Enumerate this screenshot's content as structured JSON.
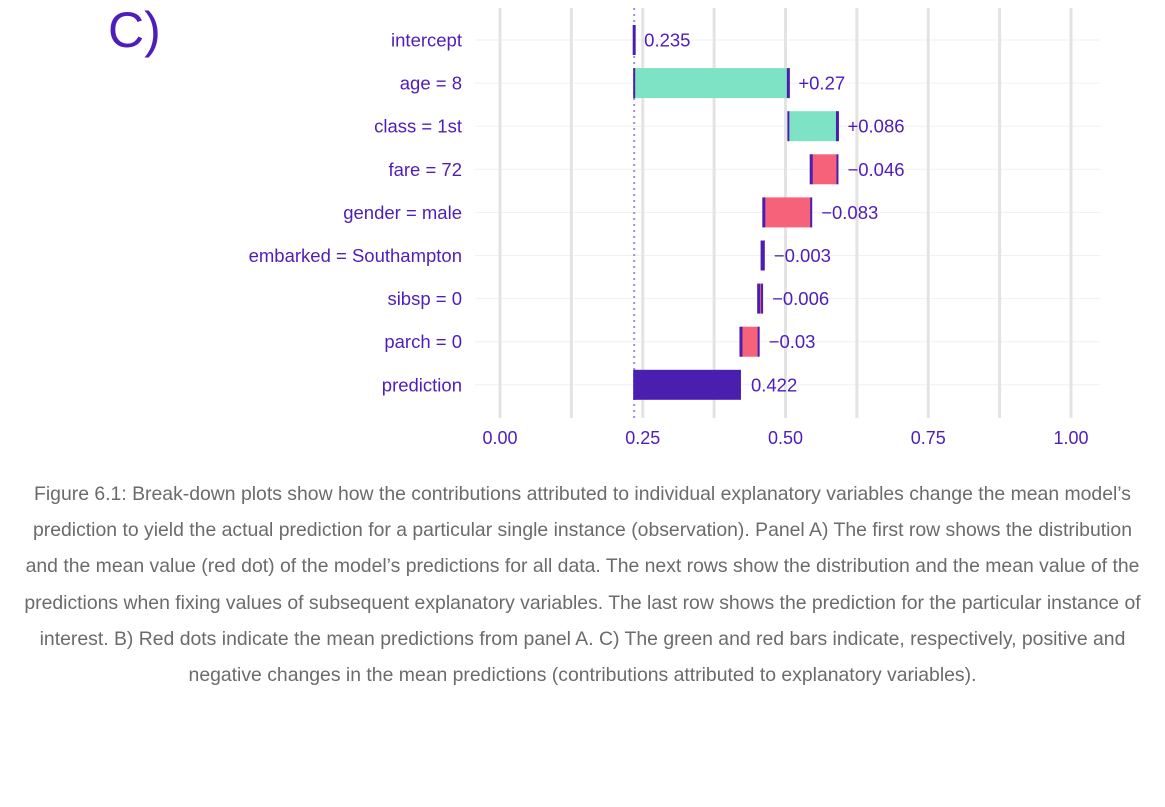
{
  "panel_label": "C)",
  "chart_data": {
    "type": "bar",
    "subtype": "waterfall",
    "title": "",
    "xlabel": "",
    "ylabel": "",
    "xlim": [
      -0.05,
      1.05
    ],
    "x_ticks": [
      0.0,
      0.25,
      0.5,
      0.75,
      1.0
    ],
    "x_tick_labels": [
      "0.00",
      "0.25",
      "0.50",
      "0.75",
      "1.00"
    ],
    "grid": true,
    "legend": "none",
    "baseline": 0.235,
    "rows": [
      {
        "label": "intercept",
        "start": 0.0,
        "end": 0.235,
        "value_label": "0.235",
        "kind": "intercept"
      },
      {
        "label": "age = 8",
        "start": 0.235,
        "end": 0.505,
        "value_label": "+0.27",
        "kind": "positive"
      },
      {
        "label": "class = 1st",
        "start": 0.505,
        "end": 0.591,
        "value_label": "+0.086",
        "kind": "positive"
      },
      {
        "label": "fare = 72",
        "start": 0.591,
        "end": 0.545,
        "value_label": "−0.046",
        "kind": "negative"
      },
      {
        "label": "gender = male",
        "start": 0.545,
        "end": 0.462,
        "value_label": "−0.083",
        "kind": "negative"
      },
      {
        "label": "embarked = Southampton",
        "start": 0.462,
        "end": 0.459,
        "value_label": "−0.003",
        "kind": "negative"
      },
      {
        "label": "sibsp = 0",
        "start": 0.459,
        "end": 0.453,
        "value_label": "−0.006",
        "kind": "negative"
      },
      {
        "label": "parch = 0",
        "start": 0.453,
        "end": 0.422,
        "value_label": "−0.03",
        "kind": "negative"
      },
      {
        "label": "prediction",
        "start": 0.235,
        "end": 0.422,
        "value_label": "0.422",
        "kind": "prediction"
      }
    ],
    "colors": {
      "positive": "#7ee2c4",
      "negative": "#f5627a",
      "prediction": "#4a1fb0",
      "connector": "#4a1fb0",
      "baseline_line": "#9a8fdd",
      "text": "#4f1dbb",
      "grid_major": "#e3e3e3",
      "grid_minor": "#f1f1f1"
    }
  },
  "caption": "Figure 6.1: Break-down plots show how the contributions attributed to individual explanatory variables change the mean model’s prediction to yield the actual prediction for a particular single instance (observation). Panel A) The first row shows the distribution and the mean value (red dot) of the model’s predictions for all data. The next rows show the distribution and the mean value of the predictions when fixing values of subsequent explanatory variables. The last row shows the prediction for the particular instance of interest. B) Red dots indicate the mean predictions from panel A. C) The green and red bars indicate, respectively, positive and negative changes in the mean predictions (contributions attributed to explanatory variables)."
}
